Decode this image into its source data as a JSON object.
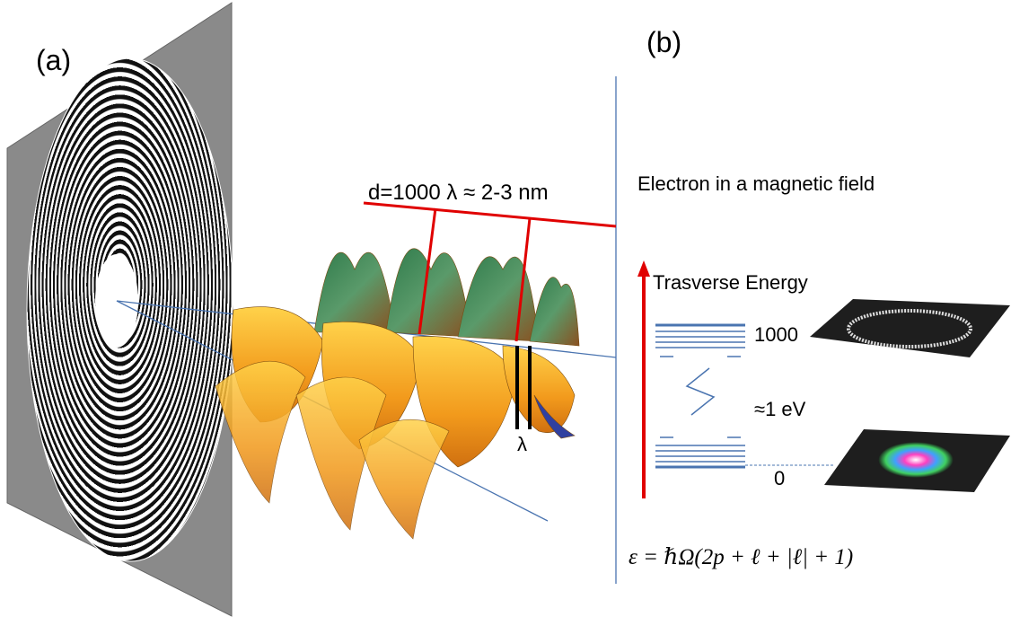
{
  "panel_a": {
    "label": "(a)",
    "distance_label": "d=1000 λ ≈ 2-3 nm",
    "wavelength_label": "λ"
  },
  "panel_b": {
    "label": "(b)",
    "title": "Electron in a magnetic field",
    "axis_label": "Trasverse Energy",
    "levels": [
      {
        "label": "1000"
      },
      {
        "label": "0"
      }
    ],
    "gap_label": "≈1 eV",
    "formula": "ε = ℏΩ(2p + ℓ + |ℓ| + 1)"
  }
}
